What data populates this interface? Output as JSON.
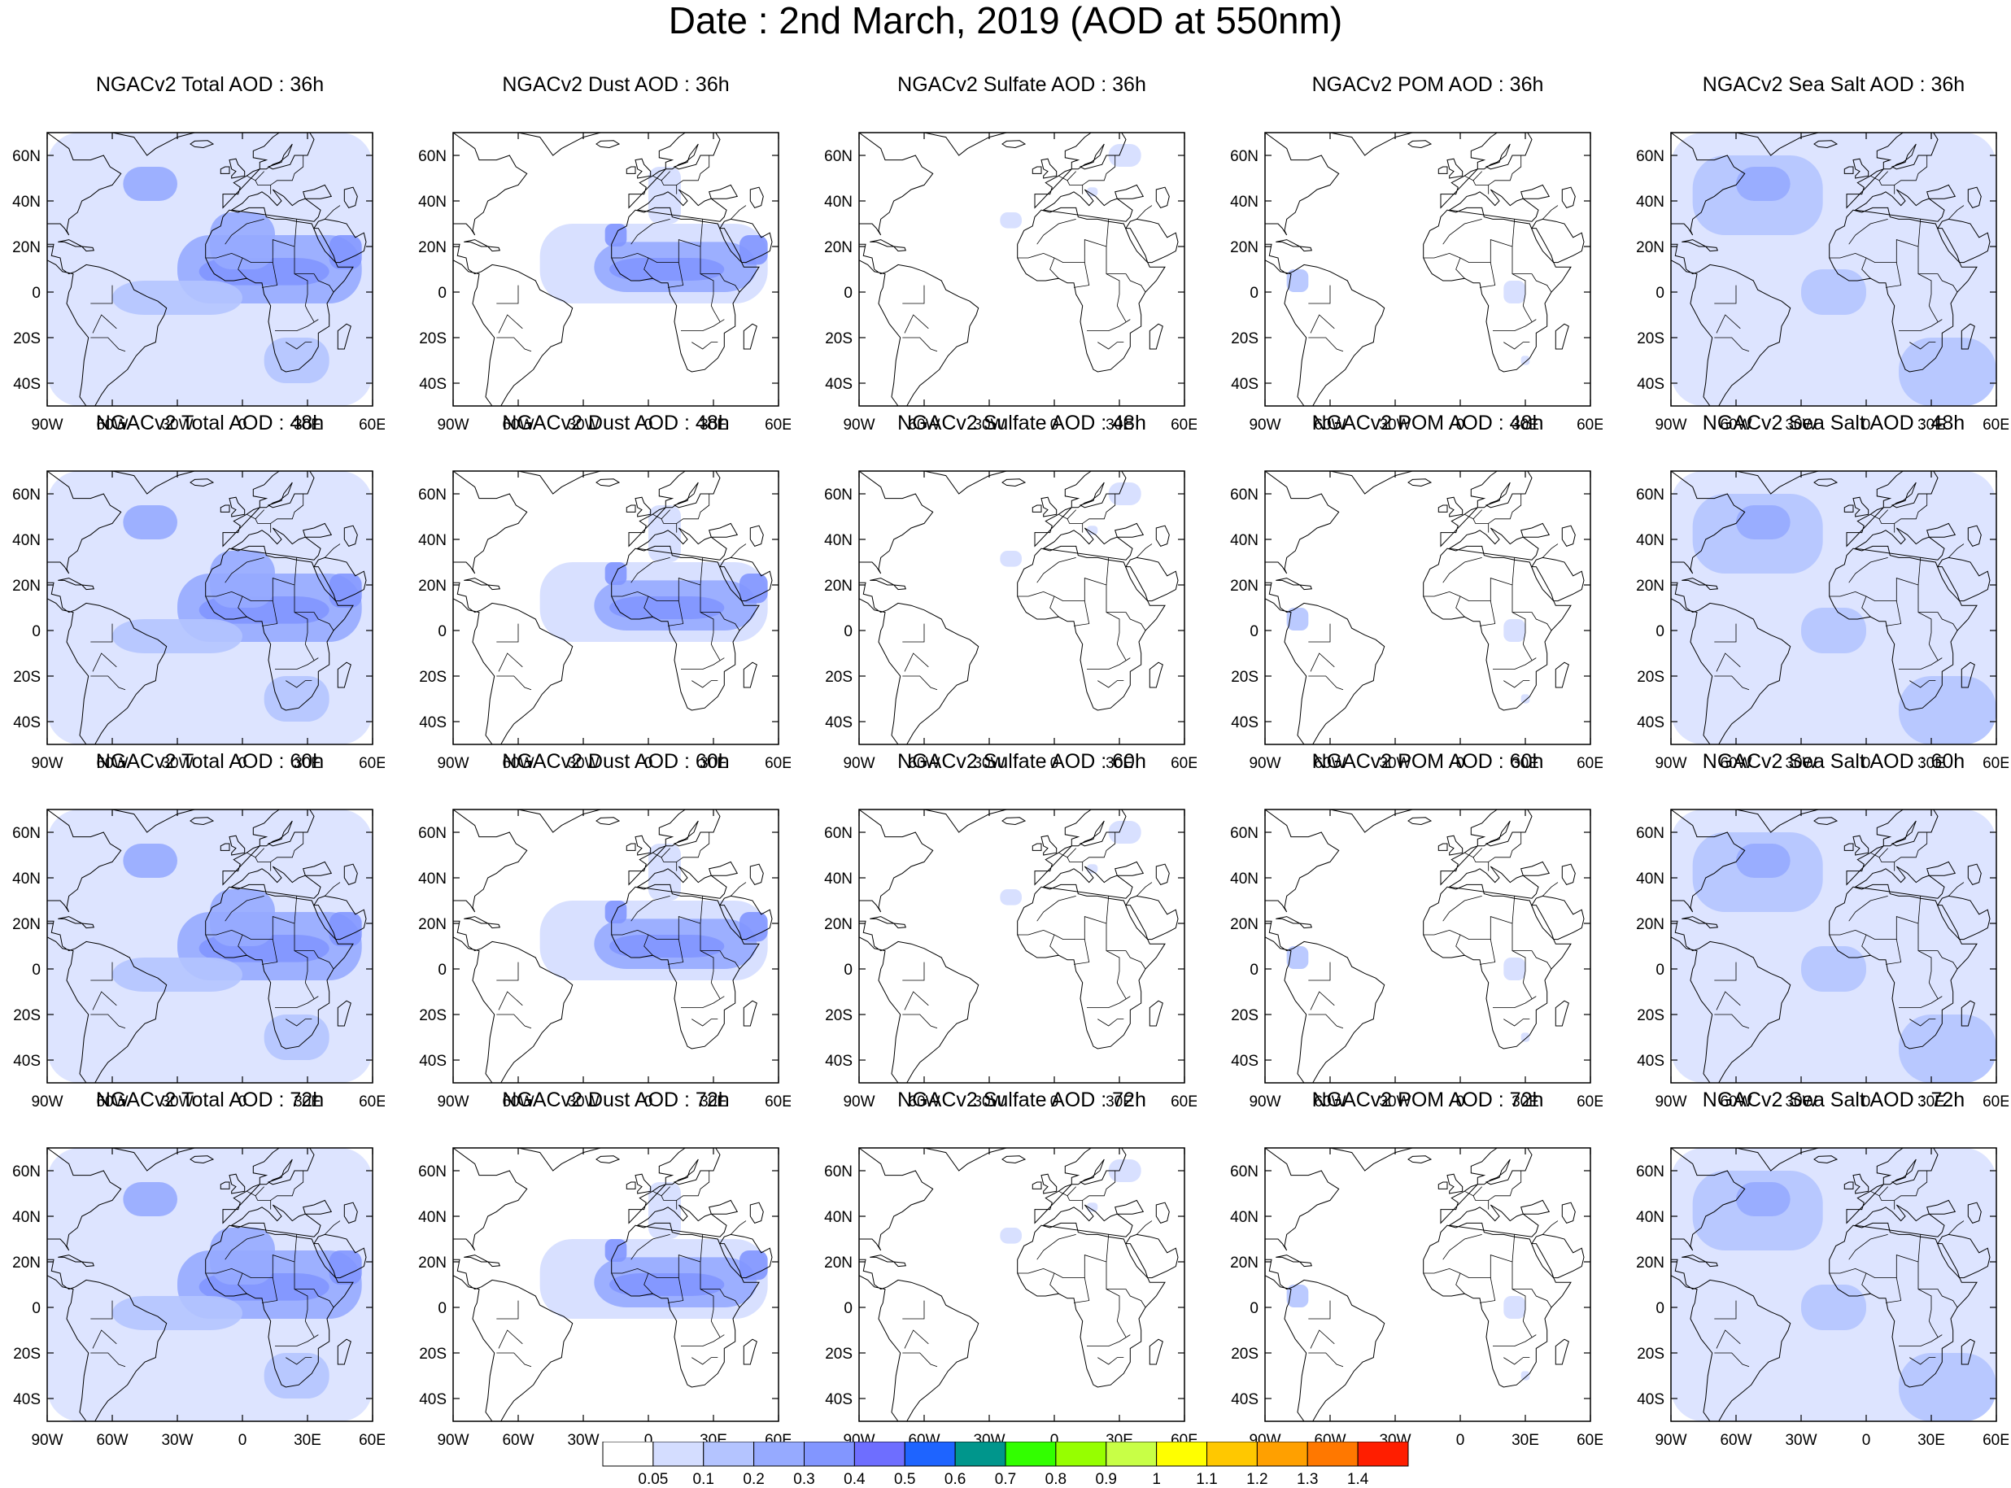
{
  "title": "Date : 2nd March, 2019 (AOD at 550nm)",
  "lat_labels": [
    "60N",
    "40N",
    "20N",
    "0",
    "20S",
    "40S"
  ],
  "lon_labels": [
    "90W",
    "60W",
    "30W",
    "0",
    "30E",
    "60E"
  ],
  "map_extent": {
    "lon": [
      -90,
      60
    ],
    "lat": [
      -50,
      70
    ]
  },
  "panels": [
    {
      "title": "NGACv2 Total AOD : 36h",
      "species": "total",
      "hour": 36
    },
    {
      "title": "NGACv2 Dust AOD : 36h",
      "species": "dust",
      "hour": 36
    },
    {
      "title": "NGACv2 Sulfate AOD : 36h",
      "species": "sulfate",
      "hour": 36
    },
    {
      "title": "NGACv2 POM AOD : 36h",
      "species": "pom",
      "hour": 36
    },
    {
      "title": "NGACv2 Sea Salt AOD : 36h",
      "species": "seasalt",
      "hour": 36
    },
    {
      "title": "NGACv2 Total AOD : 48h",
      "species": "total",
      "hour": 48
    },
    {
      "title": "NGACv2 Dust AOD : 48h",
      "species": "dust",
      "hour": 48
    },
    {
      "title": "NGACv2 Sulfate AOD : 48h",
      "species": "sulfate",
      "hour": 48
    },
    {
      "title": "NGACv2 POM AOD : 48h",
      "species": "pom",
      "hour": 48
    },
    {
      "title": "NGACv2 Sea Salt AOD : 48h",
      "species": "seasalt",
      "hour": 48
    },
    {
      "title": "NGACv2 Total AOD : 60h",
      "species": "total",
      "hour": 60
    },
    {
      "title": "NGACv2 Dust AOD : 60h",
      "species": "dust",
      "hour": 60
    },
    {
      "title": "NGACv2 Sulfate AOD : 60h",
      "species": "sulfate",
      "hour": 60
    },
    {
      "title": "NGACv2 POM AOD : 60h",
      "species": "pom",
      "hour": 60
    },
    {
      "title": "NGACv2 Sea Salt AOD : 60h",
      "species": "seasalt",
      "hour": 60
    },
    {
      "title": "NGACv2 Total AOD : 72h",
      "species": "total",
      "hour": 72
    },
    {
      "title": "NGACv2 Dust AOD : 72h",
      "species": "dust",
      "hour": 72
    },
    {
      "title": "NGACv2 Sulfate AOD : 72h",
      "species": "sulfate",
      "hour": 72
    },
    {
      "title": "NGACv2 POM AOD : 72h",
      "species": "pom",
      "hour": 72
    },
    {
      "title": "NGACv2 Sea Salt  AOD : 72h",
      "species": "seasalt",
      "hour": 72
    }
  ],
  "colorbar": {
    "labels": [
      "0.05",
      "0.1",
      "0.2",
      "0.3",
      "0.4",
      "0.5",
      "0.6",
      "0.7",
      "0.8",
      "0.9",
      "1",
      "1.1",
      "1.2",
      "1.3",
      "1.4"
    ],
    "colors": [
      "#ffffff",
      "#d4ddff",
      "#b4c4ff",
      "#96aaff",
      "#8296ff",
      "#6e6eff",
      "#1e64ff",
      "#00968c",
      "#32ff00",
      "#96ff00",
      "#c8ff46",
      "#ffff00",
      "#ffc800",
      "#ffa000",
      "#ff7800",
      "#ff1e00"
    ]
  },
  "colors": {
    "land_outline": "#000000",
    "frame": "#000000"
  }
}
